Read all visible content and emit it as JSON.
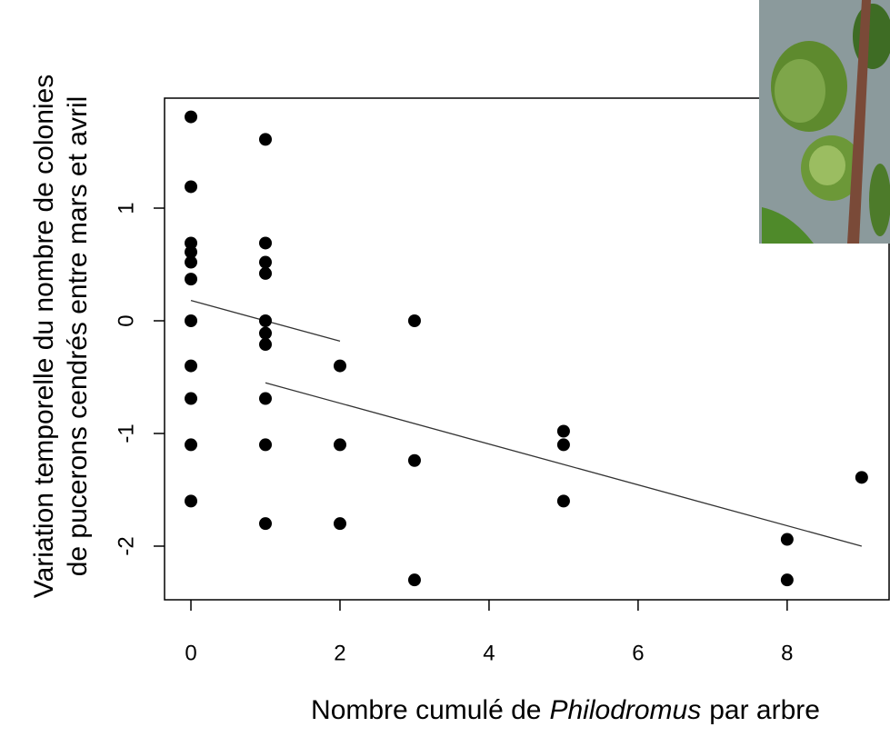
{
  "chart_data": {
    "type": "scatter",
    "xlabel_parts": [
      "Nombre cumulé de",
      "Philodromus",
      "par arbre"
    ],
    "xlabel_italic_part": 1,
    "ylabel_lines": [
      "Variation temporelle du nombre de colonies",
      "de pucerons cendrés entre mars et avril"
    ],
    "xlim": [
      -0.354,
      9.38
    ],
    "ylim": [
      -2.476,
      1.976
    ],
    "xticks": [
      0,
      2,
      4,
      6,
      8
    ],
    "yticks": [
      -2,
      -1,
      0,
      1
    ],
    "color": "#000000",
    "x": [
      0,
      0,
      0,
      0,
      0,
      0,
      0,
      0,
      0,
      0,
      0,
      1,
      1,
      1,
      1,
      1,
      1,
      1,
      1,
      1,
      1,
      2,
      2,
      2,
      3,
      3,
      3,
      5,
      5,
      5,
      8,
      8,
      9
    ],
    "y": [
      1.81,
      1.19,
      0.69,
      0.61,
      0.52,
      0.37,
      0,
      -0.4,
      -0.69,
      -1.1,
      -1.6,
      1.61,
      0.69,
      0.52,
      0.42,
      0,
      -0.11,
      -0.21,
      -0.69,
      -1.1,
      -1.8,
      -0.4,
      -1.1,
      -1.8,
      0,
      -1.24,
      -2.3,
      -0.98,
      -1.1,
      -1.6,
      -1.94,
      -2.3,
      -1.39
    ],
    "fit_lines": [
      {
        "x": [
          0,
          2
        ],
        "y": [
          0.18,
          -0.18
        ]
      },
      {
        "x": [
          1,
          9
        ],
        "y": [
          -0.55,
          -2.0
        ]
      }
    ]
  }
}
